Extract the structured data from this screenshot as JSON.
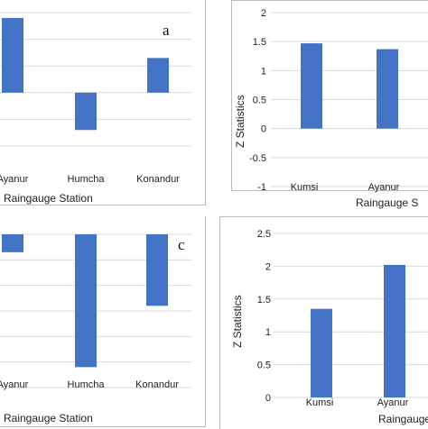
{
  "chart_data": [
    {
      "id": "a",
      "type": "bar",
      "panel_label": "a",
      "categories": [
        "Ayanur",
        "Humcha",
        "Konandur"
      ],
      "values": [
        1.4,
        -0.7,
        0.65
      ],
      "ylim": [
        -1,
        1.5
      ],
      "ticks": [
        -1,
        -0.5,
        0,
        0.5,
        1,
        1.5
      ],
      "show_tick_labels": false,
      "xlabel": "Raingauge Station",
      "ylabel": ""
    },
    {
      "id": "b",
      "type": "bar",
      "panel_label": "",
      "categories": [
        "Kumsi",
        "Ayanur"
      ],
      "values": [
        1.47,
        1.37
      ],
      "ylim": [
        -1,
        2
      ],
      "ticks": [
        -1,
        -0.5,
        0,
        0.5,
        1,
        1.5,
        2
      ],
      "show_tick_labels": true,
      "xlabel": "Raingauge S",
      "ylabel": "Z Statistics"
    },
    {
      "id": "c",
      "type": "bar",
      "panel_label": "c",
      "categories": [
        "Ayanur",
        "Humcha",
        "Konandur"
      ],
      "values": [
        -0.35,
        -2.6,
        -1.4
      ],
      "ylim": [
        -3,
        0
      ],
      "ticks": [
        -3,
        -2.5,
        -2,
        -1.5,
        -1,
        -0.5,
        0
      ],
      "show_tick_labels": false,
      "xlabel": "Raingauge Station",
      "ylabel": ""
    },
    {
      "id": "d",
      "type": "bar",
      "panel_label": "",
      "categories": [
        "Kumsi",
        "Ayanur"
      ],
      "values": [
        1.35,
        2.02
      ],
      "ylim": [
        0,
        2.5
      ],
      "ticks": [
        0,
        0.5,
        1,
        1.5,
        2,
        2.5
      ],
      "show_tick_labels": true,
      "xlabel": "Raingauge",
      "ylabel": "Z Statistics"
    }
  ],
  "colors": {
    "bar": "#4472c4",
    "grid": "#d9d9d9",
    "frame": "#bdbdbd",
    "text": "#222222"
  }
}
